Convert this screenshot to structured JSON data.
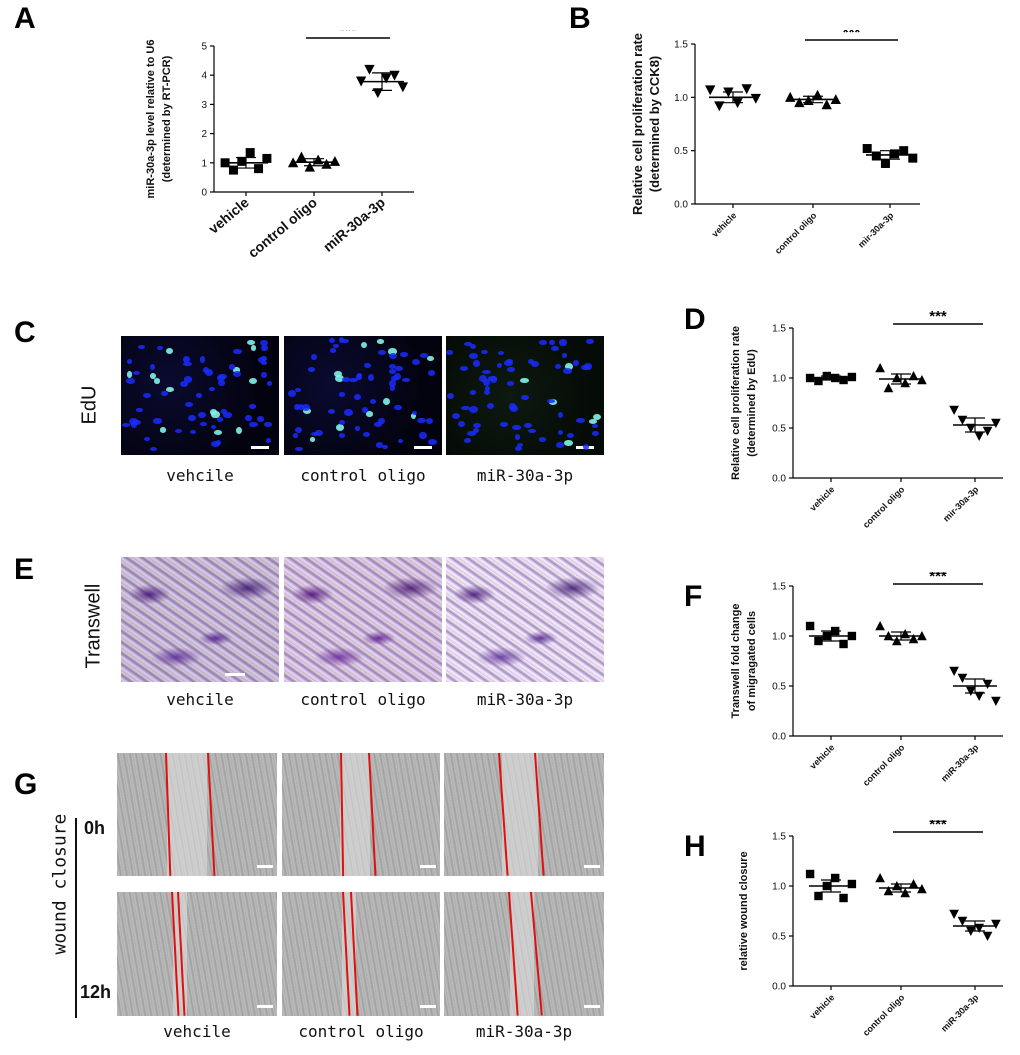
{
  "panel_letters": {
    "A": "A",
    "B": "B",
    "C": "C",
    "D": "D",
    "E": "E",
    "F": "F",
    "G": "G",
    "H": "H"
  },
  "groups": [
    "vehicle",
    "control oligo",
    "miR-30a-3p"
  ],
  "image_captions": [
    "vehcile",
    "control oligo",
    "miR-30a-3p"
  ],
  "row_labels": {
    "edu": "EdU",
    "transwell": "Transwell",
    "wound": "wound closure",
    "t0": "0h",
    "t12": "12h"
  },
  "colors": {
    "red_line": "#e01010",
    "edu_nucleus": "#1a2bff",
    "edu_positive": "#7ff5e8",
    "crystal_violet": "#6a3a9e"
  },
  "chart_data": [
    {
      "id": "A",
      "type": "scatter",
      "ylabel": "miR-30a-3p level relative to U6",
      "ylabel2": "(determined by RT-PCR)",
      "categories": [
        "vehicle",
        "control oligo",
        "miR-30a-3p"
      ],
      "yticks": [
        "0",
        "1",
        "2",
        "3",
        "4",
        "5"
      ],
      "ylim": [
        0,
        5
      ],
      "significance": "***",
      "sig_between": [
        1,
        2
      ],
      "series": [
        {
          "marker": "square",
          "values": [
            1.0,
            0.75,
            1.05,
            1.35,
            0.8,
            1.15
          ],
          "mean": 1.0,
          "err": 0.18
        },
        {
          "marker": "triangle-up",
          "values": [
            1.0,
            1.2,
            0.85,
            1.1,
            0.95,
            1.05
          ],
          "mean": 1.02,
          "err": 0.12
        },
        {
          "marker": "triangle-down",
          "values": [
            3.8,
            4.2,
            3.4,
            3.9,
            4.0,
            3.6
          ],
          "mean": 3.78,
          "err": 0.3
        }
      ]
    },
    {
      "id": "B",
      "type": "scatter",
      "ylabel": "Relative cell proliferation rate",
      "ylabel2": "(determined by CCK8)",
      "categories": [
        "vehicle",
        "control oligo",
        "mir-30a-3p"
      ],
      "yticks": [
        "0.0",
        "0.5",
        "1.0",
        "1.5"
      ],
      "ylim": [
        0,
        1.5
      ],
      "significance": "***",
      "sig_between": [
        1,
        2
      ],
      "series": [
        {
          "marker": "triangle-down",
          "values": [
            1.07,
            0.92,
            1.05,
            0.95,
            1.08,
            0.99
          ],
          "mean": 1.0,
          "err": 0.05
        },
        {
          "marker": "triangle-up",
          "values": [
            1.0,
            0.95,
            0.97,
            1.02,
            0.93,
            0.98
          ],
          "mean": 0.98,
          "err": 0.03
        },
        {
          "marker": "square",
          "values": [
            0.52,
            0.45,
            0.38,
            0.47,
            0.5,
            0.43
          ],
          "mean": 0.46,
          "err": 0.04
        }
      ]
    },
    {
      "id": "D",
      "type": "scatter",
      "ylabel": "Relative cell proliferation rate",
      "ylabel2": "(determined by EdU)",
      "categories": [
        "vehicle",
        "control oligo",
        "mir-30a-3p"
      ],
      "yticks": [
        "0.0",
        "0.5",
        "1.0",
        "1.5"
      ],
      "ylim": [
        0,
        1.5
      ],
      "significance": "***",
      "sig_between": [
        1,
        2
      ],
      "series": [
        {
          "marker": "square",
          "values": [
            1.0,
            0.97,
            1.02,
            1.0,
            0.98,
            1.01
          ],
          "mean": 1.0,
          "err": 0.02
        },
        {
          "marker": "triangle-up",
          "values": [
            1.1,
            0.9,
            1.0,
            0.95,
            1.02,
            0.98
          ],
          "mean": 0.99,
          "err": 0.05
        },
        {
          "marker": "triangle-down",
          "values": [
            0.68,
            0.58,
            0.5,
            0.42,
            0.47,
            0.55
          ],
          "mean": 0.53,
          "err": 0.07
        }
      ]
    },
    {
      "id": "F",
      "type": "scatter",
      "ylabel": "Transwell fold change",
      "ylabel2": "of migragated cells",
      "categories": [
        "vehicle",
        "control oligo",
        "miR-30a-3p"
      ],
      "yticks": [
        "0.0",
        "0.5",
        "1.0",
        "1.5"
      ],
      "ylim": [
        0,
        1.5
      ],
      "significance": "***",
      "sig_between": [
        1,
        2
      ],
      "series": [
        {
          "marker": "square",
          "values": [
            1.1,
            0.95,
            1.0,
            1.05,
            0.92,
            1.0
          ],
          "mean": 1.0,
          "err": 0.05
        },
        {
          "marker": "triangle-up",
          "values": [
            1.1,
            1.0,
            0.95,
            1.02,
            0.97,
            1.0
          ],
          "mean": 1.0,
          "err": 0.04
        },
        {
          "marker": "triangle-down",
          "values": [
            0.65,
            0.58,
            0.45,
            0.4,
            0.52,
            0.35
          ],
          "mean": 0.5,
          "err": 0.07
        }
      ]
    },
    {
      "id": "H",
      "type": "scatter",
      "ylabel": "relative wound closure",
      "ylabel2": "",
      "categories": [
        "vehicle",
        "control oligo",
        "miR-30a-3p"
      ],
      "yticks": [
        "0.0",
        "0.5",
        "1.0",
        "1.5"
      ],
      "ylim": [
        0,
        1.5
      ],
      "significance": "***",
      "sig_between": [
        1,
        2
      ],
      "series": [
        {
          "marker": "square",
          "values": [
            1.12,
            0.9,
            1.0,
            1.08,
            0.88,
            1.02
          ],
          "mean": 1.0,
          "err": 0.06
        },
        {
          "marker": "triangle-up",
          "values": [
            1.08,
            0.95,
            1.0,
            0.93,
            1.02,
            0.97
          ],
          "mean": 0.98,
          "err": 0.04
        },
        {
          "marker": "triangle-down",
          "values": [
            0.72,
            0.65,
            0.55,
            0.58,
            0.5,
            0.62
          ],
          "mean": 0.6,
          "err": 0.05
        }
      ]
    }
  ]
}
